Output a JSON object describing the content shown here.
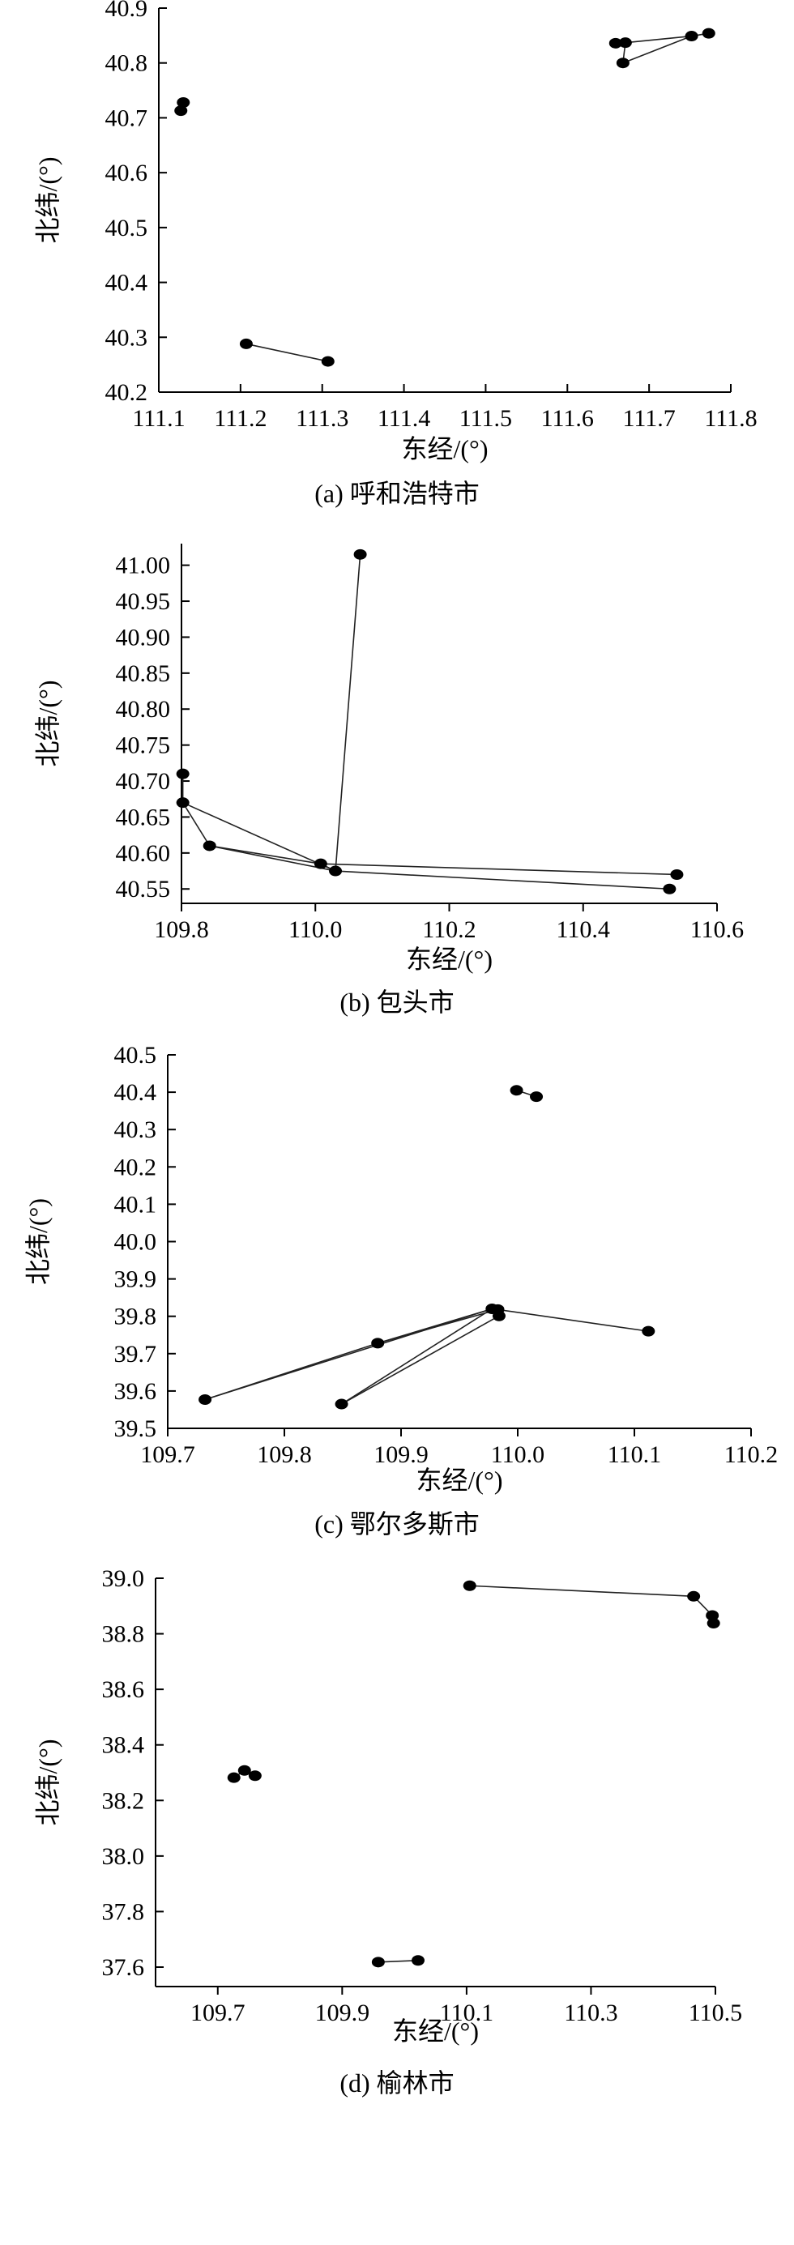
{
  "chart_data": [
    {
      "type": "scatter",
      "caption": "(a) 呼和浩特市",
      "xlabel": "东经/(°)",
      "ylabel": "北纬/(°)",
      "xlim": [
        111.1,
        111.8
      ],
      "ylim": [
        40.2,
        40.9
      ],
      "xticks": [
        "111.1",
        "111.2",
        "111.3",
        "111.4",
        "111.5",
        "111.6",
        "111.7",
        "111.8"
      ],
      "yticks": [
        "40.2",
        "40.3",
        "40.4",
        "40.5",
        "40.6",
        "40.7",
        "40.8",
        "40.9"
      ],
      "points": [
        [
          111.13,
          40.728
        ],
        [
          111.127,
          40.713
        ],
        [
          111.207,
          40.288
        ],
        [
          111.307,
          40.256
        ],
        [
          111.659,
          40.836
        ],
        [
          111.671,
          40.837
        ],
        [
          111.668,
          40.8
        ],
        [
          111.752,
          40.849
        ],
        [
          111.773,
          40.854
        ]
      ],
      "segments": [
        [
          2,
          3
        ],
        [
          4,
          5
        ],
        [
          5,
          7
        ],
        [
          7,
          8
        ],
        [
          5,
          6
        ],
        [
          6,
          7
        ]
      ]
    },
    {
      "type": "scatter",
      "caption": "(b) 包头市",
      "xlabel": "东经/(°)",
      "ylabel": "北纬/(°)",
      "xlim": [
        109.8,
        110.6
      ],
      "ylim": [
        40.53,
        41.03
      ],
      "xaxis_at": 109.8,
      "xticks": [
        "109.8",
        "110.0",
        "110.2",
        "110.4",
        "110.6"
      ],
      "yticks": [
        "40.55",
        "40.60",
        "40.65",
        "40.70",
        "40.75",
        "40.80",
        "40.85",
        "40.90",
        "40.95",
        "41.00"
      ],
      "points": [
        [
          109.802,
          40.71
        ],
        [
          109.802,
          40.67
        ],
        [
          109.842,
          40.61
        ],
        [
          110.008,
          40.585
        ],
        [
          110.03,
          40.575
        ],
        [
          110.067,
          41.015
        ],
        [
          110.54,
          40.57
        ],
        [
          110.529,
          40.55
        ]
      ],
      "segments": [
        [
          0,
          1
        ],
        [
          1,
          2
        ],
        [
          2,
          3
        ],
        [
          3,
          4
        ],
        [
          4,
          5
        ],
        [
          1,
          4
        ],
        [
          2,
          4
        ],
        [
          3,
          6
        ],
        [
          4,
          7
        ]
      ]
    },
    {
      "type": "scatter",
      "caption": "(c) 鄂尔多斯市",
      "xlabel": "东经/(°)",
      "ylabel": "北纬/(°)",
      "xlim": [
        109.7,
        110.2
      ],
      "ylim": [
        39.5,
        40.5
      ],
      "xaxis_at": 109.7,
      "xticks": [
        "109.7",
        "109.8",
        "109.9",
        "110.0",
        "110.1",
        "110.2"
      ],
      "yticks": [
        "39.5",
        "39.6",
        "39.7",
        "39.8",
        "39.9",
        "40.0",
        "40.1",
        "40.2",
        "40.3",
        "40.4",
        "40.5"
      ],
      "points": [
        [
          109.999,
          40.405
        ],
        [
          110.016,
          40.388
        ],
        [
          109.732,
          39.577
        ],
        [
          109.88,
          39.728
        ],
        [
          109.849,
          39.565
        ],
        [
          109.978,
          39.82
        ],
        [
          109.983,
          39.818
        ],
        [
          109.984,
          39.801
        ],
        [
          110.112,
          39.76
        ]
      ],
      "segments": [
        [
          0,
          1
        ],
        [
          2,
          3
        ],
        [
          3,
          5
        ],
        [
          2,
          5
        ],
        [
          3,
          6
        ],
        [
          4,
          5
        ],
        [
          4,
          7
        ],
        [
          5,
          6
        ],
        [
          6,
          7
        ],
        [
          6,
          8
        ]
      ]
    },
    {
      "type": "scatter",
      "caption": "(d) 榆林市",
      "xlabel": "东经/(°)",
      "ylabel": "北纬/(°)",
      "xlim": [
        109.6,
        110.5
      ],
      "ylim": [
        37.53,
        39.0
      ],
      "xaxis_at": 109.6,
      "xticks": [
        "109.7",
        "109.9",
        "110.1",
        "110.3",
        "110.5"
      ],
      "yticks": [
        "37.6",
        "37.8",
        "38.0",
        "38.2",
        "38.4",
        "38.6",
        "38.8",
        "39.0"
      ],
      "points": [
        [
          109.726,
          38.282
        ],
        [
          109.743,
          38.308
        ],
        [
          109.76,
          38.289
        ],
        [
          109.958,
          37.618
        ],
        [
          110.022,
          37.624
        ],
        [
          110.105,
          38.973
        ],
        [
          110.465,
          38.935
        ],
        [
          110.495,
          38.866
        ],
        [
          110.497,
          38.838
        ]
      ],
      "segments": [
        [
          0,
          1
        ],
        [
          1,
          2
        ],
        [
          3,
          4
        ],
        [
          5,
          6
        ],
        [
          6,
          7
        ],
        [
          7,
          8
        ]
      ]
    }
  ]
}
